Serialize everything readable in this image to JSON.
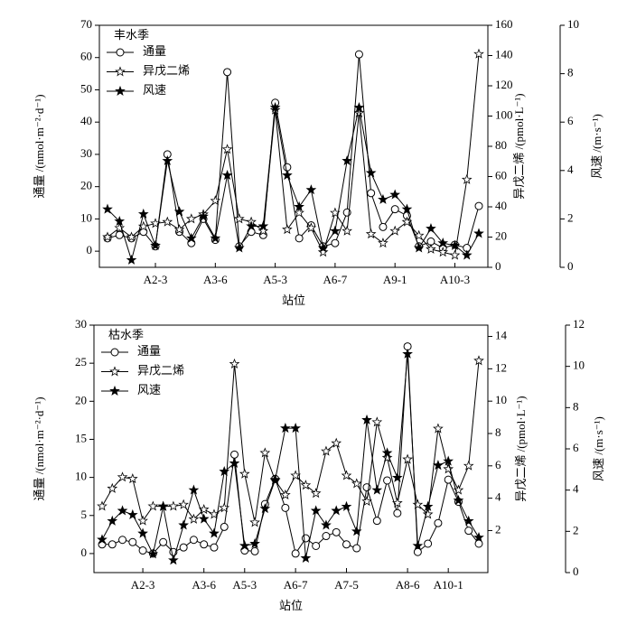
{
  "chart_data": [
    {
      "type": "line",
      "title": "丰水季",
      "x_label": "站位",
      "y_label": "通量 /(nmol·m⁻²·d⁻¹)",
      "y2_label": "异戊二烯 /(pmol·L⁻¹)",
      "y3_label": "风速 /(m·s⁻¹)",
      "legend": "upper left",
      "categories": [
        null,
        null,
        null,
        null,
        "A2-3",
        null,
        null,
        null,
        null,
        "A3-6",
        null,
        null,
        null,
        null,
        "A5-3",
        null,
        null,
        null,
        null,
        "A6-7",
        null,
        null,
        null,
        null,
        "A9-1",
        null,
        null,
        null,
        null,
        "A10-3",
        null,
        null
      ],
      "ylim": [
        -5,
        70
      ],
      "yticks": [
        0,
        10,
        20,
        30,
        40,
        50,
        60,
        70
      ],
      "y2lim": [
        0,
        160
      ],
      "y2ticks": [
        0,
        20,
        40,
        60,
        80,
        100,
        120,
        140,
        160
      ],
      "y3lim": [
        0,
        10
      ],
      "y3ticks": [
        0,
        2,
        4,
        6,
        8,
        10
      ],
      "series": [
        {
          "name": "通量",
          "axis": "y",
          "marker": "circle",
          "fill": "#ffffff",
          "color": "#000000",
          "values": [
            4,
            5,
            4,
            6,
            1.5,
            30,
            6,
            2.5,
            10,
            3.5,
            55.5,
            1.5,
            6,
            5,
            46,
            26,
            4,
            8,
            1.5,
            2.5,
            12,
            61,
            18,
            7.5,
            13,
            11,
            1.5,
            3,
            1,
            2,
            1,
            14
          ]
        },
        {
          "name": "异戊二烯",
          "axis": "y2",
          "marker": "star",
          "fill": "#ffffff",
          "color": "#000000",
          "values": [
            20,
            26,
            20,
            27,
            29,
            30,
            25,
            32,
            35,
            44,
            78,
            32,
            30,
            24,
            104,
            25,
            36,
            26,
            10,
            36,
            24,
            102,
            22,
            16,
            24,
            30,
            21,
            12,
            10,
            8,
            58,
            141
          ]
        },
        {
          "name": "风速",
          "axis": "y3",
          "marker": "star",
          "fill": "#000000",
          "color": "#000000",
          "values": [
            2.4,
            1.9,
            0.3,
            2.2,
            0.9,
            4.4,
            2.3,
            1.2,
            2.1,
            1.2,
            3.8,
            0.8,
            1.7,
            1.7,
            6.6,
            3.8,
            2.5,
            3.2,
            0.8,
            1.5,
            4.4,
            6.6,
            3.9,
            2.8,
            3.0,
            2.4,
            0.8,
            1.6,
            1.0,
            0.9,
            0.5,
            1.4
          ]
        }
      ]
    },
    {
      "type": "line",
      "title": "枯水季",
      "x_label": "站位",
      "y_label": "通量 /(nmol·m⁻²·d⁻¹)",
      "y2_label": "异戊二烯 /(pmol·L⁻¹)",
      "y3_label": "风速 /(m·s⁻¹)",
      "legend": "upper left",
      "categories": [
        null,
        null,
        null,
        null,
        "A2-3",
        null,
        null,
        null,
        null,
        null,
        "A3-6",
        null,
        null,
        null,
        "A5-3",
        null,
        null,
        null,
        null,
        "A6-7",
        null,
        null,
        null,
        null,
        "A7-5",
        null,
        null,
        null,
        null,
        null,
        "A8-6",
        null,
        null,
        null,
        "A10-1",
        null,
        null,
        null
      ],
      "ylim": [
        -2.5,
        30
      ],
      "yticks": [
        0,
        5,
        10,
        15,
        20,
        25,
        30
      ],
      "y2lim": [
        -0.6,
        14.7
      ],
      "y2ticks": [
        2,
        4,
        6,
        8,
        10,
        12,
        14
      ],
      "y3lim": [
        0,
        12
      ],
      "y3ticks": [
        0,
        2,
        4,
        6,
        8,
        10,
        12
      ],
      "series": [
        {
          "name": "通量",
          "axis": "y",
          "marker": "circle",
          "fill": "#ffffff",
          "color": "#000000",
          "values": [
            1.2,
            1.2,
            1.8,
            1.5,
            0.4,
            0,
            1.5,
            0.2,
            0.8,
            1.8,
            1.2,
            0.8,
            3.5,
            13,
            0.4,
            0.3,
            6.5,
            9.8,
            6,
            0,
            2,
            1,
            2.3,
            2.8,
            1.2,
            0.7,
            8.7,
            4.3,
            9.6,
            5.3,
            27.2,
            0.2,
            1.3,
            4,
            9.7,
            6.8,
            3,
            1.3
          ]
        },
        {
          "name": "异戊二烯",
          "axis": "y2",
          "marker": "star",
          "fill": "#ffffff",
          "color": "#000000",
          "values": [
            3.5,
            4.6,
            5.3,
            5.2,
            2.6,
            3.5,
            3.5,
            3.5,
            3.6,
            2.7,
            3.3,
            3.0,
            3.4,
            12.3,
            5.5,
            2.5,
            6.8,
            5.1,
            4.2,
            5.4,
            4.8,
            4.3,
            6.9,
            7.4,
            5.4,
            4.9,
            3.8,
            8.7,
            6.5,
            3.7,
            6.4,
            3.6,
            3.0,
            8.3,
            5.8,
            4.5,
            6.0,
            12.5
          ]
        },
        {
          "name": "风速",
          "axis": "y3",
          "marker": "star",
          "fill": "#000000",
          "color": "#000000",
          "values": [
            1.6,
            2.5,
            3.0,
            2.8,
            1.9,
            0.9,
            3.2,
            0.6,
            2.3,
            4.0,
            2.6,
            1.9,
            4.9,
            5.3,
            1.3,
            1.4,
            3.1,
            4.5,
            7.0,
            7.0,
            0.7,
            3.0,
            2.3,
            3.0,
            3.2,
            2.0,
            7.4,
            4.0,
            5.8,
            4.6,
            10.6,
            1.3,
            3.2,
            5.2,
            5.4,
            3.5,
            2.5,
            1.7
          ]
        }
      ]
    }
  ]
}
